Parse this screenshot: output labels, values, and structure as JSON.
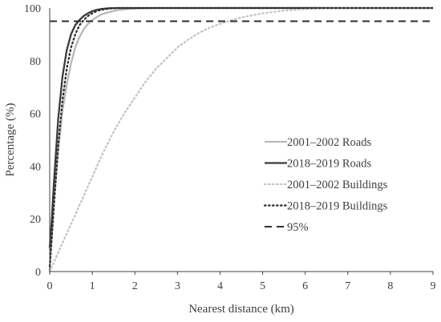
{
  "chart_data": {
    "type": "line",
    "title": "",
    "xlabel": "Nearest distance (km)",
    "ylabel": "Percentage (%)",
    "xlim": [
      0,
      9
    ],
    "ylim": [
      0,
      100
    ],
    "x_ticks": [
      "0",
      "1",
      "2",
      "3",
      "4",
      "5",
      "6",
      "7",
      "8",
      "9"
    ],
    "y_ticks": [
      "0",
      "20",
      "40",
      "60",
      "80",
      "100"
    ],
    "grid": false,
    "legend_position": "right",
    "series": [
      {
        "name": "2001–2002 Roads",
        "color": "#b8b8b8",
        "style": "solid",
        "x": [
          0,
          0.1,
          0.2,
          0.3,
          0.4,
          0.5,
          0.6,
          0.7,
          0.8,
          0.9,
          1.0,
          1.2,
          1.4,
          1.6,
          1.8,
          2.0,
          2.5,
          3.0,
          4.0,
          5.0,
          6.0,
          7.0,
          8.0,
          9.0
        ],
        "y": [
          0,
          27,
          46,
          61,
          71,
          79,
          85,
          89,
          92,
          94,
          95.5,
          97.5,
          98.5,
          99.2,
          99.6,
          99.8,
          100,
          100,
          100,
          100,
          100,
          100,
          100,
          100
        ]
      },
      {
        "name": "2018–2019 Roads",
        "color": "#3a3a3a",
        "style": "solid",
        "x": [
          0,
          0.05,
          0.1,
          0.2,
          0.3,
          0.4,
          0.5,
          0.6,
          0.7,
          0.8,
          0.9,
          1.0,
          1.1,
          1.2,
          1.4,
          1.6,
          1.8,
          2.0,
          3.0,
          4.0,
          5.0,
          6.0,
          7.0,
          8.0,
          9.0
        ],
        "y": [
          9,
          20,
          34,
          58,
          74,
          84,
          90,
          93.5,
          95.5,
          97,
          98,
          98.8,
          99.3,
          99.6,
          99.9,
          100,
          100,
          100,
          100,
          100,
          100,
          100,
          100,
          100,
          100
        ]
      },
      {
        "name": "2001–2002 Buildings",
        "color": "#c4c4c4",
        "style": "dotted",
        "x": [
          0,
          0.25,
          0.5,
          0.75,
          1.0,
          1.25,
          1.5,
          1.75,
          2.0,
          2.25,
          2.5,
          2.75,
          3.0,
          3.25,
          3.5,
          3.75,
          4.0,
          4.25,
          4.5,
          5.0,
          5.5,
          6.0,
          6.5,
          7.0,
          8.0,
          9.0
        ],
        "y": [
          0,
          9,
          18,
          27,
          36,
          45,
          53,
          60,
          66,
          72,
          77,
          81,
          85,
          88,
          90.5,
          92.5,
          94,
          95.3,
          96.4,
          98,
          99,
          99.6,
          99.9,
          100,
          100,
          100
        ]
      },
      {
        "name": "2018–2019 Buildings",
        "color": "#2e2e2e",
        "style": "dotted",
        "x": [
          0,
          0.05,
          0.1,
          0.2,
          0.3,
          0.4,
          0.5,
          0.6,
          0.7,
          0.8,
          0.9,
          1.0,
          1.1,
          1.2,
          1.4,
          1.6,
          1.8,
          2.0,
          3.0,
          4.0,
          5.0,
          6.0,
          7.0,
          8.0,
          9.0
        ],
        "y": [
          2,
          13,
          25,
          48,
          65,
          77,
          85,
          90,
          93.5,
          95.5,
          97,
          98,
          98.8,
          99.3,
          99.8,
          100,
          100,
          100,
          100,
          100,
          100,
          100,
          100,
          100,
          100
        ]
      },
      {
        "name": "95%",
        "color": "#2e2e2e",
        "style": "dashed",
        "x": [
          0,
          9
        ],
        "y": [
          95,
          95
        ]
      }
    ]
  }
}
